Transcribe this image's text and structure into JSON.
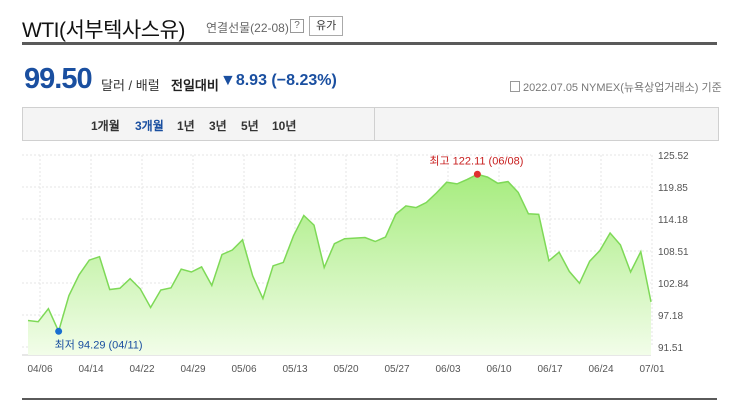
{
  "header": {
    "title": "WTI(서부텍사스유)",
    "subtitle": "연결선물(22-08)",
    "help": "?",
    "button": "유가"
  },
  "quote": {
    "price": "99.50",
    "unit": "달러 / 배럴",
    "change_label": "전일대비",
    "change_value": "▼8.93 (−8.23%)",
    "meta": "2022.07.05  NYMEX(뉴욕상업거래소) 기준"
  },
  "tabs": [
    "1개월",
    "3개월",
    "1년",
    "3년",
    "5년",
    "10년"
  ],
  "active_tab": 1,
  "chart_data": {
    "type": "area",
    "y_ticks": [
      "125.52",
      "119.85",
      "114.18",
      "108.51",
      "102.84",
      "97.18",
      "91.51"
    ],
    "x_ticks": [
      "04/06",
      "04/14",
      "04/22",
      "04/29",
      "05/06",
      "05/13",
      "05/20",
      "05/27",
      "06/03",
      "06/10",
      "06/17",
      "06/24",
      "07/01"
    ],
    "ylim": [
      91.51,
      125.52
    ],
    "values": [
      96.2,
      96.0,
      98.3,
      94.29,
      100.6,
      104.3,
      106.9,
      107.5,
      101.7,
      101.9,
      103.6,
      101.8,
      98.5,
      101.6,
      102.0,
      105.3,
      104.8,
      105.7,
      102.4,
      107.9,
      108.7,
      110.5,
      104.1,
      100.1,
      105.9,
      106.5,
      111.2,
      114.8,
      113.1,
      105.6,
      109.8,
      110.7,
      110.8,
      110.9,
      110.2,
      111.0,
      115.0,
      116.5,
      116.2,
      117.1,
      118.8,
      120.7,
      120.4,
      121.2,
      122.11,
      121.6,
      120.5,
      120.8,
      118.9,
      115.1,
      115.0,
      106.8,
      108.3,
      104.9,
      102.8,
      106.7,
      108.6,
      111.7,
      109.6,
      104.8,
      108.4,
      99.5
    ],
    "annotations": {
      "max": {
        "label": "최고 122.11 (06/08)",
        "index": 44,
        "value": 122.11
      },
      "min": {
        "label": "최저 94.29 (04/11)",
        "index": 3,
        "value": 94.29
      }
    },
    "colors": {
      "line": "#7ed957",
      "fill_top": "#a6ec7e",
      "fill_bottom": "#f2fde9",
      "max": "#e03030",
      "min": "#1a6fd0",
      "max_text": "#c81e1e",
      "min_text": "#1a4fa0"
    },
    "grid": true
  }
}
